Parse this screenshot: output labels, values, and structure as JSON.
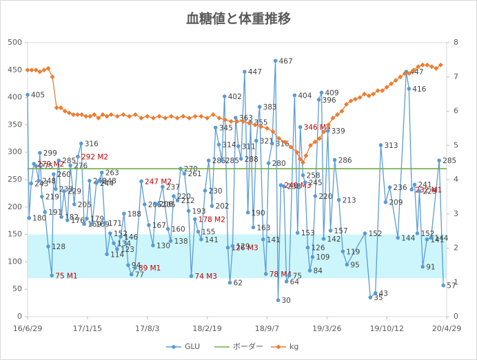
{
  "chart_data": {
    "type": "line",
    "title": "血糖値と体重推移",
    "xlim": [
      0,
      1400
    ],
    "xticks": [
      {
        "value": 0,
        "label": "16/6/29"
      },
      {
        "value": 200,
        "label": "17/1/15"
      },
      {
        "value": 400,
        "label": "17/8/3"
      },
      {
        "value": 600,
        "label": "18/2/19"
      },
      {
        "value": 800,
        "label": "18/9/7"
      },
      {
        "value": 1000,
        "label": "19/3/26"
      },
      {
        "value": 1200,
        "label": "19/10/12"
      },
      {
        "value": 1400,
        "label": "20/4/29"
      }
    ],
    "ylim": [
      0,
      500
    ],
    "yticks": [
      0,
      50,
      100,
      150,
      200,
      250,
      300,
      350,
      400,
      450,
      500
    ],
    "y2lim": [
      0,
      8
    ],
    "y2ticks": [
      0,
      1,
      2,
      3,
      4,
      5,
      6,
      7,
      8
    ],
    "band": {
      "from": 70,
      "to": 150,
      "color": "#ccf6fb"
    },
    "highlight_color": "#c00000",
    "legend": "bottom",
    "series": [
      {
        "name": "GLU",
        "color": "#5b9bd5",
        "marker": "circle",
        "x": [
          0,
          5,
          12,
          21,
          28,
          37,
          41,
          48,
          58,
          69,
          81,
          87,
          94,
          104,
          113,
          122,
          133,
          143,
          156,
          168,
          179,
          189,
          198,
          207,
          216,
          230,
          239,
          248,
          258,
          265,
          276,
          288,
          299,
          311,
          322,
          336,
          347,
          359,
          380,
          391,
          405,
          419,
          428,
          437,
          451,
          469,
          478,
          488,
          501,
          511,
          524,
          538,
          547,
          559,
          570,
          580,
          593,
          605,
          616,
          628,
          639,
          649,
          658,
          669,
          676,
          685,
          695,
          704,
          713,
          725,
          736,
          745,
          754,
          764,
          775,
          787,
          796,
          805,
          817,
          828,
          837,
          846,
          856,
          865,
          874,
          892,
          902,
          911,
          920,
          927,
          936,
          943,
          952,
          961,
          973,
          982,
          989,
          1003,
          1012,
          1026,
          1040,
          1053,
          1067,
          1127,
          1145,
          1162,
          1180,
          1196,
          1210,
          1237,
          1265,
          1274,
          1283,
          1293,
          1302,
          1309,
          1320,
          1334,
          1348,
          1375,
          1389
        ],
        "values": [
          405,
          180,
          243,
          279,
          275,
          248,
          299,
          219,
          191,
          128,
          75,
          260,
          233,
          285,
          182,
          229,
          176,
          276,
          205,
          292,
          316,
          169,
          179,
          248,
          169,
          244,
          248,
          263,
          171,
          114,
          152,
          134,
          123,
          146,
          188,
          94,
          77,
          89,
          247,
          205,
          167,
          130,
          206,
          205,
          237,
          160,
          138,
          220,
          212,
          270,
          261,
          193,
          74,
          178,
          155,
          141,
          230,
          285,
          202,
          345,
          314,
          285,
          402,
          126,
          62,
          129,
          363,
          311,
          288,
          447,
          190,
          355,
          163,
          321,
          383,
          141,
          78,
          280,
          316,
          467,
          30,
          240,
          238,
          64,
          75,
          404,
          153,
          346,
          258,
          245,
          126,
          84,
          109,
          220,
          396,
          409,
          142,
          339,
          157,
          286,
          213,
          119,
          95,
          152,
          35,
          43,
          313,
          209,
          236,
          144,
          447,
          416,
          232,
          241,
          152,
          229,
          91,
          141,
          144,
          285,
          57
        ],
        "value_labels": [
          "405",
          "180",
          "243",
          "279 M2",
          "275",
          "248",
          "299",
          "219",
          "191",
          "128",
          "75 M1",
          "260",
          "233",
          "285",
          "182",
          "229",
          "176",
          "276",
          "205",
          "292 M2",
          "316",
          "169",
          "179",
          "248",
          "169",
          "244",
          "248",
          "263",
          "171",
          "114",
          "152",
          "134",
          "123",
          "146",
          "188",
          "94",
          "77",
          "89 M1",
          "247 M2",
          "205",
          "167",
          "130",
          "206",
          "205",
          "237",
          "160",
          "138",
          "220",
          "212",
          "270",
          "261",
          "193",
          "74 M3",
          "178 M2",
          "155",
          "141",
          "230",
          "285",
          "202",
          "345",
          "314",
          "285",
          "402",
          "126 M3",
          "62",
          "129",
          "363",
          "311",
          "288",
          "447",
          "190",
          "355",
          "163",
          "321",
          "383",
          "141",
          "78 M4",
          "280",
          "316",
          "467",
          "30",
          "240 M3",
          "238",
          "64",
          "75",
          "404",
          "153",
          "346 M4",
          "258",
          "245",
          "126",
          "84",
          "109",
          "220",
          "396",
          "409",
          "142",
          "339",
          "157",
          "286",
          "213",
          "119",
          "95",
          "152",
          "35",
          "43",
          "313",
          "209",
          "236",
          "144",
          "447",
          "416",
          "232 M1",
          "241",
          "152",
          "229",
          "91",
          "141",
          "144",
          "285",
          "57"
        ]
      },
      {
        "name": "ボーダー",
        "color": "#70ad47",
        "marker": "none",
        "x": [
          0,
          1400
        ],
        "values": [
          270,
          270
        ]
      },
      {
        "name": "kg",
        "color": "#ed7d31",
        "marker": "diamond",
        "axis": "y2",
        "x": [
          0,
          14,
          28,
          41,
          55,
          69,
          83,
          97,
          111,
          125,
          139,
          153,
          167,
          181,
          195,
          209,
          223,
          237,
          251,
          265,
          279,
          300,
          320,
          340,
          360,
          380,
          400,
          420,
          440,
          460,
          480,
          500,
          520,
          540,
          560,
          580,
          600,
          620,
          640,
          660,
          680,
          700,
          720,
          740,
          760,
          780,
          800,
          820,
          840,
          860,
          880,
          900,
          910,
          920,
          930,
          945,
          960,
          975,
          990,
          1005,
          1020,
          1035,
          1050,
          1065,
          1080,
          1095,
          1110,
          1125,
          1140,
          1155,
          1170,
          1185,
          1200,
          1215,
          1230,
          1245,
          1260,
          1275,
          1290,
          1305,
          1320,
          1335,
          1350,
          1365,
          1380
        ],
        "values": [
          7.2,
          7.2,
          7.2,
          7.15,
          7.2,
          7.25,
          7.0,
          6.1,
          6.1,
          6.0,
          5.95,
          5.9,
          5.9,
          5.9,
          5.85,
          5.85,
          5.9,
          5.8,
          5.9,
          5.85,
          5.9,
          5.85,
          5.9,
          5.85,
          5.9,
          5.8,
          5.85,
          5.8,
          5.85,
          5.8,
          5.85,
          5.8,
          5.85,
          5.8,
          5.85,
          5.85,
          5.8,
          5.9,
          5.8,
          5.75,
          5.7,
          5.7,
          5.7,
          5.65,
          5.6,
          5.55,
          5.5,
          5.4,
          5.2,
          5.1,
          4.95,
          4.8,
          4.6,
          4.5,
          4.7,
          5.0,
          5.1,
          5.2,
          5.4,
          5.6,
          5.8,
          5.9,
          6.0,
          6.2,
          6.3,
          6.35,
          6.4,
          6.5,
          6.45,
          6.5,
          6.6,
          6.6,
          6.7,
          6.8,
          6.9,
          7.0,
          7.1,
          7.1,
          7.2,
          7.3,
          7.35,
          7.35,
          7.3,
          7.25,
          7.35
        ]
      }
    ]
  }
}
